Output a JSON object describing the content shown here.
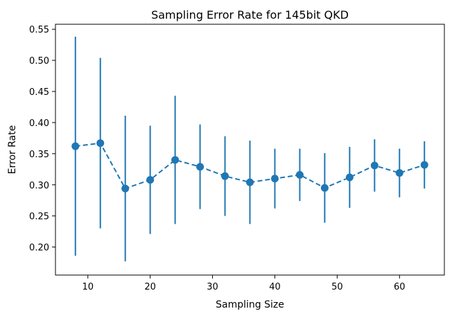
{
  "chart_data": {
    "type": "line",
    "title": "Sampling Error Rate for 145bit QKD",
    "xlabel": "Sampling Size",
    "ylabel": "Error Rate",
    "xlim": [
      4.8,
      67.2
    ],
    "ylim": [
      0.155,
      0.558
    ],
    "xticks": [
      10,
      20,
      30,
      40,
      50,
      60
    ],
    "xtick_labels": [
      "10",
      "20",
      "30",
      "40",
      "50",
      "60"
    ],
    "yticks": [
      0.2,
      0.25,
      0.3,
      0.35,
      0.4,
      0.45,
      0.5,
      0.55
    ],
    "ytick_labels": [
      "0.20",
      "0.25",
      "0.30",
      "0.35",
      "0.40",
      "0.45",
      "0.50",
      "0.55"
    ],
    "grid": false,
    "series_color": "#1f77b4",
    "line_style": "dashed",
    "marker": "circle",
    "error_bars": true,
    "series": [
      {
        "x": [
          8,
          12,
          16,
          20,
          24,
          28,
          32,
          36,
          40,
          44,
          48,
          52,
          56,
          60,
          64
        ],
        "values": [
          0.362,
          0.367,
          0.294,
          0.308,
          0.34,
          0.329,
          0.314,
          0.304,
          0.31,
          0.316,
          0.295,
          0.312,
          0.331,
          0.319,
          0.332
        ],
        "error": [
          0.176,
          0.137,
          0.117,
          0.087,
          0.103,
          0.068,
          0.064,
          0.067,
          0.048,
          0.042,
          0.056,
          0.049,
          0.042,
          0.039,
          0.038
        ]
      }
    ]
  }
}
